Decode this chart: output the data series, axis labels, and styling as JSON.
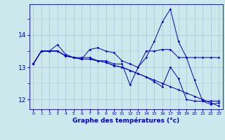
{
  "xlabel": "Graphe des températures (°c)",
  "x_hours": [
    0,
    1,
    2,
    3,
    4,
    5,
    6,
    7,
    8,
    9,
    10,
    11,
    12,
    13,
    14,
    15,
    16,
    17,
    18,
    19,
    20,
    21,
    22,
    23
  ],
  "series": [
    [
      13.1,
      13.5,
      13.5,
      13.7,
      13.4,
      13.3,
      13.3,
      13.3,
      13.2,
      13.2,
      13.1,
      13.1,
      12.45,
      13.0,
      13.3,
      13.8,
      14.4,
      14.8,
      13.8,
      13.3,
      12.6,
      11.95,
      11.85,
      11.9
    ],
    [
      13.1,
      13.5,
      13.5,
      13.5,
      13.35,
      13.3,
      13.25,
      13.55,
      13.6,
      13.5,
      13.45,
      13.2,
      13.1,
      13.0,
      13.5,
      13.5,
      13.55,
      13.55,
      13.3,
      13.3,
      13.3,
      13.3,
      13.3,
      13.3
    ],
    [
      13.1,
      13.5,
      13.5,
      13.5,
      13.35,
      13.3,
      13.25,
      13.25,
      13.2,
      13.15,
      13.05,
      13.0,
      12.9,
      12.8,
      12.7,
      12.6,
      12.5,
      12.4,
      12.3,
      12.2,
      12.1,
      12.0,
      11.9,
      11.8
    ],
    [
      13.1,
      13.5,
      13.5,
      13.5,
      13.35,
      13.3,
      13.25,
      13.25,
      13.2,
      13.15,
      13.05,
      13.0,
      12.9,
      12.8,
      12.7,
      12.55,
      12.4,
      13.0,
      12.65,
      12.0,
      11.95,
      11.95,
      11.95,
      11.95
    ]
  ],
  "bg_color": "#cce8ec",
  "grid_color": "#aac8d4",
  "line_color": "#0000cc",
  "marker": "D",
  "marker_size": 1.5,
  "line_width": 0.7,
  "ylim": [
    11.7,
    14.95
  ],
  "yticks": [
    12,
    13,
    14
  ],
  "ytick_fontsize": 6.5,
  "xtick_fontsize": 4.5,
  "xlabel_fontsize": 6.5,
  "xlim": [
    -0.5,
    23.5
  ]
}
